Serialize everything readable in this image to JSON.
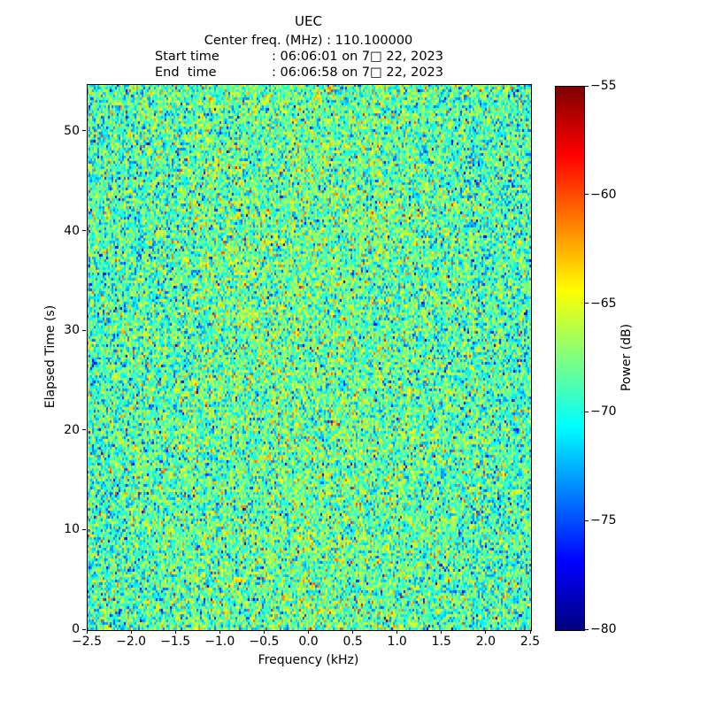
{
  "header": {
    "title": "UEC",
    "center_freq_line": "Center freq. (MHz) : 110.100000",
    "start_label": "Start time",
    "start_value": ": 06:06:01 on 7□ 22, 2023",
    "end_label": "End  time",
    "end_value": ": 06:06:58 on 7□ 22, 2023"
  },
  "colors": {
    "background": "#ffffff",
    "text": "#000000",
    "spine": "#000000",
    "colormap_low": "#00007f",
    "colormap_high": "#7f0000"
  },
  "chart_data": {
    "type": "heatmap",
    "title": "UEC",
    "subtitle_lines": [
      "Center freq. (MHz) : 110.100000",
      "Start time        : 06:06:01 on 7□ 22, 2023",
      "End  time         : 06:06:58 on 7□ 22, 2023"
    ],
    "xlabel": "Frequency (kHz)",
    "ylabel": "Elapsed Time (s)",
    "xlim": [
      -2.5,
      2.5
    ],
    "ylim": [
      0,
      54.7
    ],
    "x_ticks": [
      -2.5,
      -2.0,
      -1.5,
      -1.0,
      -0.5,
      0.0,
      0.5,
      1.0,
      1.5,
      2.0,
      2.5
    ],
    "y_ticks": [
      0,
      10,
      20,
      30,
      40,
      50
    ],
    "grid": false,
    "colorbar": {
      "label": "Power (dB)",
      "vmin": -80,
      "vmax": -55,
      "ticks": [
        -55,
        -60,
        -65,
        -70,
        -75,
        -80
      ],
      "colormap": "jet"
    },
    "heatmap": {
      "description": "uniform random RF noise spectrogram, no visible signal; slightly warmer (higher power) band near center frequency",
      "cols": 251,
      "rows": 206,
      "noise_mean_db": -69.3,
      "noise_std_db": 3.1,
      "center_bias_db": 1.2,
      "seed": 1337
    }
  }
}
